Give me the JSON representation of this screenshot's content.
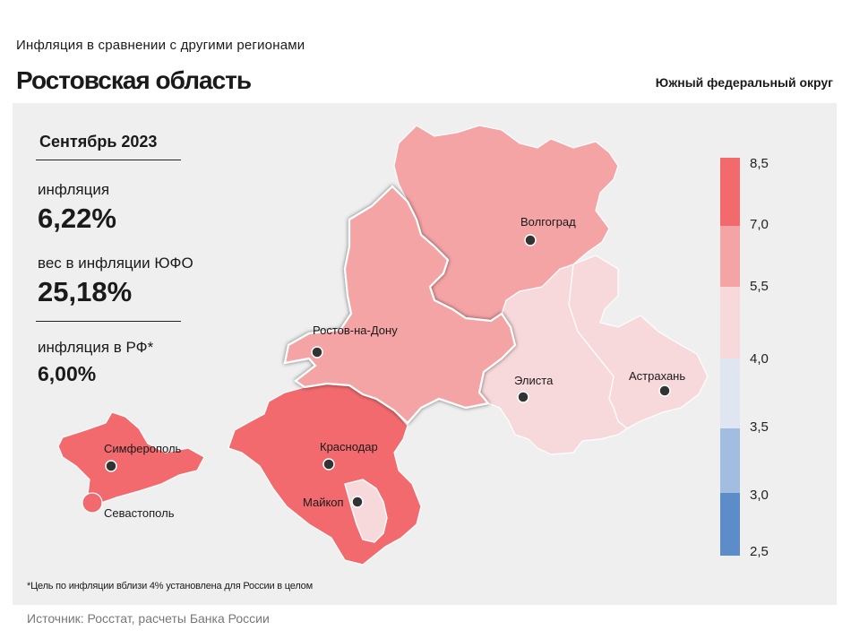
{
  "header": {
    "subtitle": "Инфляция в сравнении с другими регионами",
    "title": "Ростовская область",
    "district": "Южный федеральный округ"
  },
  "stats": {
    "period": "Сентябрь 2023",
    "inflation_label": "инфляция",
    "inflation_value": "6,22%",
    "weight_label": "вес в инфляции ЮФО",
    "weight_value": "25,18%",
    "russia_label": "инфляция в РФ*",
    "russia_value": "6,00%"
  },
  "legend": {
    "ticks": [
      "8,5",
      "7,0",
      "5,5",
      "4,0",
      "3,5",
      "3,0",
      "2,5"
    ],
    "colors": [
      "#f26a6e",
      "#f5a4a6",
      "#f8d9db",
      "#dfe6f2",
      "#a2bde0",
      "#5e8cc8"
    ]
  },
  "cities": {
    "volgograd": "Волгоград",
    "rostov": "Ростов-на-Дону",
    "elista": "Элиста",
    "astrakhan": "Астрахань",
    "krasnodar": "Краснодар",
    "maykop": "Майкоп",
    "simferopol": "Симферополь",
    "sevastopol": "Севастополь"
  },
  "regions": {
    "volgograd_color": "#f5a4a6",
    "rostov_color": "#f5a4a6",
    "kalmykia_color": "#f8d9db",
    "astrakhan_color": "#f8d9db",
    "krasnodar_color": "#f26a6e",
    "adygea_color": "#f8d9db",
    "crimea_color": "#f26a6e",
    "sevastopol_color": "#f26a6e"
  },
  "footnote": "*Цель по инфляции вблизи 4% установлена для России в целом",
  "source": "Источник: Росстат, расчеты Банка России"
}
